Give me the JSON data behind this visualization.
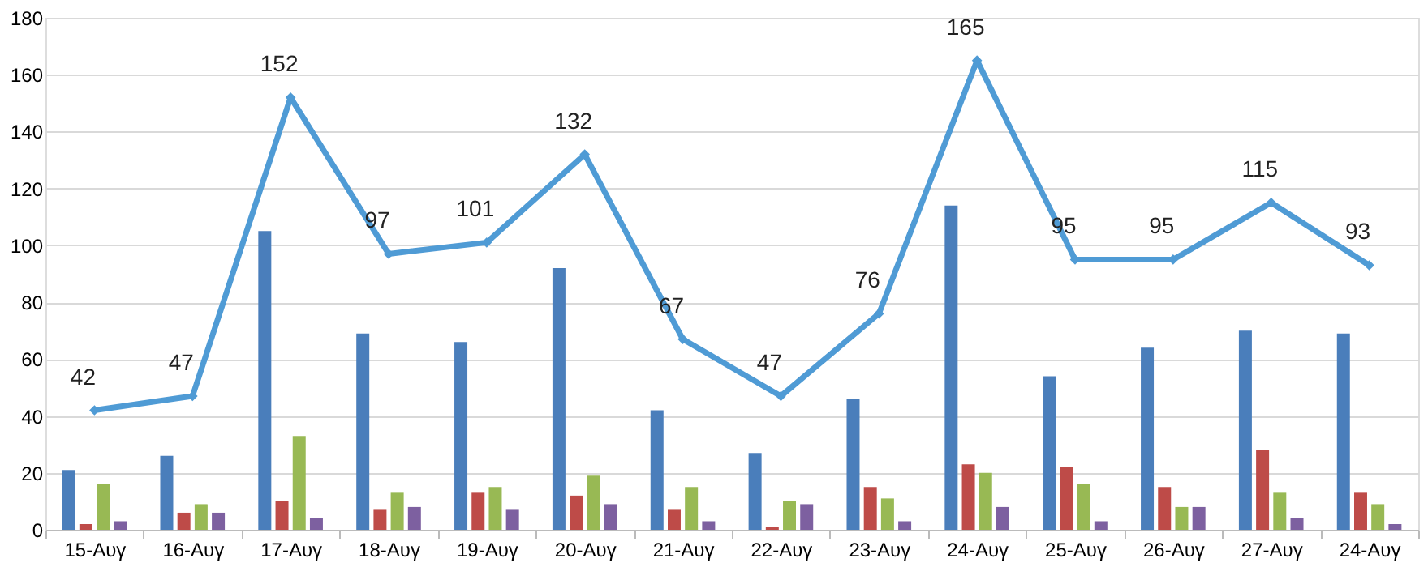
{
  "chart_data": {
    "type": "bar",
    "categories": [
      "15-Αυγ",
      "16-Αυγ",
      "17-Αυγ",
      "18-Αυγ",
      "19-Αυγ",
      "20-Αυγ",
      "21-Αυγ",
      "22-Αυγ",
      "23-Αυγ",
      "24-Αυγ",
      "25-Αυγ",
      "26-Αυγ",
      "27-Αυγ",
      "24-Αυγ"
    ],
    "series": [
      {
        "color": "#4a7ebb",
        "values": [
          21,
          26,
          105,
          69,
          66,
          92,
          42,
          27,
          46,
          114,
          54,
          64,
          70,
          69
        ]
      },
      {
        "color": "#be4b48",
        "values": [
          2,
          6,
          10,
          7,
          13,
          12,
          7,
          1,
          15,
          23,
          22,
          15,
          28,
          13
        ]
      },
      {
        "color": "#98b954",
        "values": [
          16,
          9,
          33,
          13,
          15,
          19,
          15,
          10,
          11,
          20,
          16,
          8,
          13,
          9
        ]
      },
      {
        "color": "#7d60a0",
        "values": [
          3,
          6,
          4,
          8,
          7,
          9,
          3,
          9,
          3,
          8,
          3,
          8,
          4,
          2
        ]
      },
      {
        "type": "line",
        "color": "#4f9bd5",
        "marker": "diamond",
        "values": [
          42,
          47,
          152,
          97,
          101,
          132,
          67,
          47,
          76,
          165,
          95,
          95,
          115,
          93
        ],
        "value_labels": [
          "42",
          "47",
          "152",
          "97",
          "101",
          "132",
          "67",
          "47",
          "76",
          "165",
          "95",
          "95",
          "115",
          "93"
        ]
      }
    ],
    "ylim": [
      0,
      180
    ],
    "yticks": [
      0,
      20,
      40,
      60,
      80,
      100,
      120,
      140,
      160,
      180
    ],
    "grid": "y"
  }
}
